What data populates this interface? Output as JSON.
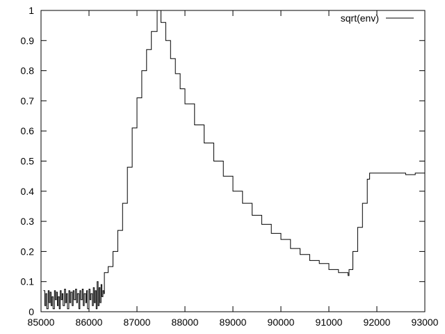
{
  "chart_data": {
    "type": "line",
    "title": "",
    "xlabel": "",
    "ylabel": "",
    "xlim": [
      85000,
      93000
    ],
    "ylim": [
      0,
      1
    ],
    "xticks": [
      "85000",
      "86000",
      "87000",
      "88000",
      "89000",
      "90000",
      "91000",
      "92000",
      "93000"
    ],
    "yticks": [
      "0",
      "0.1",
      "0.2",
      "0.3",
      "0.4",
      "0.5",
      "0.6",
      "0.7",
      "0.8",
      "0.9",
      "1"
    ],
    "grid": false,
    "legend_position": "top-right",
    "series": [
      {
        "name": "sqrt(env)",
        "color": "#000000",
        "x": [
          85050,
          85080,
          85100,
          85120,
          85150,
          85170,
          85190,
          85210,
          85230,
          85250,
          85280,
          85300,
          85320,
          85340,
          85360,
          85380,
          85400,
          85420,
          85440,
          85460,
          85490,
          85510,
          85530,
          85550,
          85580,
          85600,
          85620,
          85650,
          85670,
          85690,
          85720,
          85740,
          85760,
          85790,
          85810,
          85830,
          85860,
          85880,
          85900,
          85930,
          85950,
          85970,
          86000,
          86020,
          86040,
          86070,
          86090,
          86110,
          86130,
          86150,
          86170,
          86190,
          86210,
          86230,
          86250,
          86270,
          86290,
          86310,
          86320,
          86400,
          86500,
          86600,
          86700,
          86800,
          86900,
          87000,
          87100,
          87200,
          87300,
          87420,
          87500,
          87600,
          87700,
          87800,
          87900,
          88000,
          88200,
          88400,
          88600,
          88800,
          89000,
          89200,
          89400,
          89600,
          89800,
          90000,
          90200,
          90400,
          90600,
          90800,
          91000,
          91200,
          91300,
          91400,
          91420,
          91500,
          91600,
          91700,
          91800,
          91850,
          92000,
          92200,
          92400,
          92600,
          92800,
          93000
        ],
        "y": [
          0.07,
          0.02,
          0.06,
          0.01,
          0.07,
          0.03,
          0.065,
          0.02,
          0.05,
          0.01,
          0.07,
          0.04,
          0.065,
          0.02,
          0.05,
          0.01,
          0.07,
          0.04,
          0.06,
          0.02,
          0.075,
          0.03,
          0.06,
          0.01,
          0.07,
          0.03,
          0.065,
          0.02,
          0.07,
          0.04,
          0.075,
          0.03,
          0.06,
          0.01,
          0.07,
          0.04,
          0.075,
          0.02,
          0.06,
          0.03,
          0.07,
          0.01,
          0.075,
          0.04,
          0.06,
          0.02,
          0.08,
          0.03,
          0.07,
          0.01,
          0.1,
          0.02,
          0.08,
          0.03,
          0.09,
          0.05,
          0.07,
          0.06,
          0.13,
          0.15,
          0.2,
          0.27,
          0.36,
          0.48,
          0.61,
          0.71,
          0.8,
          0.87,
          0.93,
          1.0,
          0.96,
          0.9,
          0.84,
          0.79,
          0.74,
          0.69,
          0.62,
          0.56,
          0.5,
          0.45,
          0.4,
          0.36,
          0.32,
          0.29,
          0.26,
          0.24,
          0.21,
          0.19,
          0.17,
          0.16,
          0.14,
          0.13,
          0.13,
          0.12,
          0.14,
          0.2,
          0.28,
          0.36,
          0.44,
          0.46,
          0.46,
          0.46,
          0.46,
          0.455,
          0.46,
          0.46
        ]
      }
    ]
  }
}
